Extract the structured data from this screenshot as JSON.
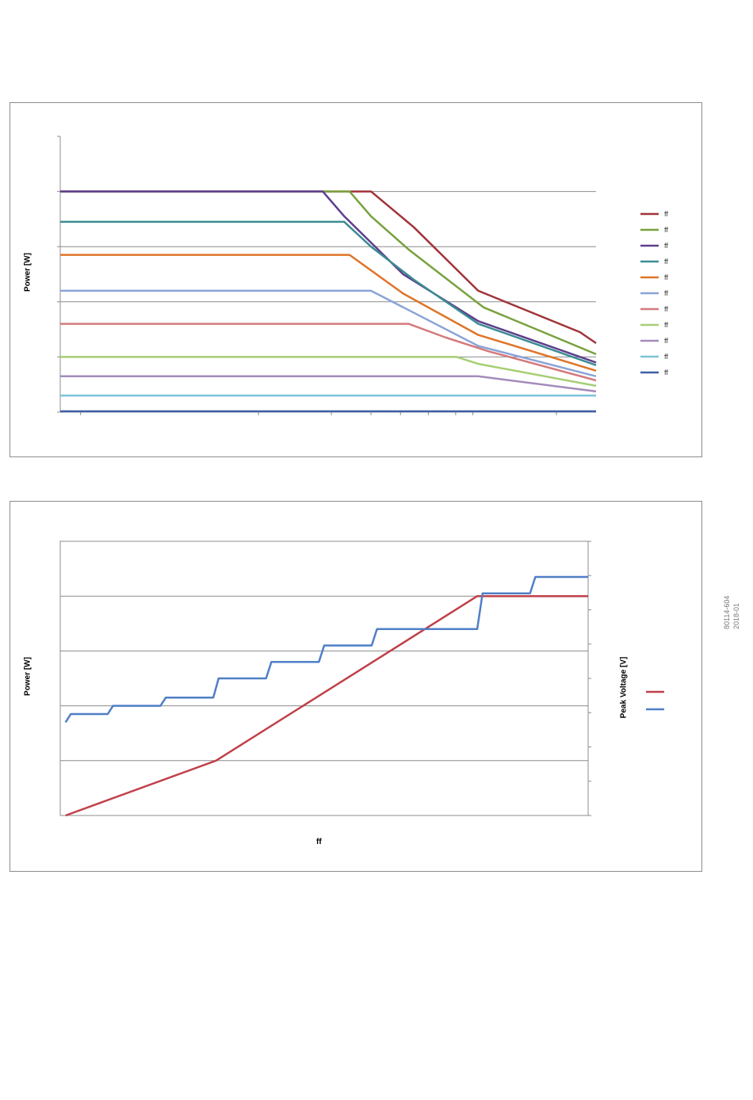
{
  "doc": {
    "code": "80114-604",
    "date": "2018-01"
  },
  "chart_data": [
    {
      "type": "line",
      "title": "",
      "ylabel": "Power [W]",
      "xlabel": "",
      "ylim": [
        0,
        1
      ],
      "xlim": [
        0,
        100
      ],
      "grid": "horizontal",
      "legend_position": "right",
      "series": [
        {
          "name": "ff",
          "color": "#a0343a",
          "points": [
            [
              0,
              0.8
            ],
            [
              58,
              0.8
            ],
            [
              66,
              0.67
            ],
            [
              78,
              0.44
            ],
            [
              97,
              0.29
            ],
            [
              100,
              0.25
            ]
          ]
        },
        {
          "name": "ff",
          "color": "#77a23e",
          "points": [
            [
              0,
              0.8
            ],
            [
              54,
              0.8
            ],
            [
              58,
              0.71
            ],
            [
              65,
              0.59
            ],
            [
              79,
              0.38
            ],
            [
              100,
              0.21
            ]
          ]
        },
        {
          "name": "ff",
          "color": "#5e3e8c",
          "points": [
            [
              0,
              0.8
            ],
            [
              49,
              0.8
            ],
            [
              53,
              0.71
            ],
            [
              64,
              0.5
            ],
            [
              78,
              0.33
            ],
            [
              100,
              0.18
            ]
          ]
        },
        {
          "name": "ff",
          "color": "#3b8c94",
          "points": [
            [
              0,
              0.69
            ],
            [
              53,
              0.69
            ],
            [
              58,
              0.6
            ],
            [
              66,
              0.48
            ],
            [
              78,
              0.32
            ],
            [
              100,
              0.17
            ]
          ]
        },
        {
          "name": "ff",
          "color": "#e07428",
          "points": [
            [
              0,
              0.57
            ],
            [
              54,
              0.57
            ],
            [
              64,
              0.43
            ],
            [
              78,
              0.28
            ],
            [
              100,
              0.15
            ]
          ]
        },
        {
          "name": "ff",
          "color": "#8aa4d6",
          "points": [
            [
              0,
              0.44
            ],
            [
              58,
              0.44
            ],
            [
              66,
              0.36
            ],
            [
              78,
              0.24
            ],
            [
              100,
              0.13
            ]
          ]
        },
        {
          "name": "ff",
          "color": "#d47a7c",
          "points": [
            [
              0,
              0.32
            ],
            [
              65,
              0.32
            ],
            [
              72,
              0.27
            ],
            [
              80,
              0.22
            ],
            [
              100,
              0.115
            ]
          ]
        },
        {
          "name": "ff",
          "color": "#a6ce74",
          "points": [
            [
              0,
              0.2
            ],
            [
              74,
              0.2
            ],
            [
              78,
              0.175
            ],
            [
              100,
              0.095
            ]
          ]
        },
        {
          "name": "ff",
          "color": "#a48bba",
          "points": [
            [
              0,
              0.13
            ],
            [
              78,
              0.13
            ],
            [
              100,
              0.075
            ]
          ]
        },
        {
          "name": "ff",
          "color": "#7cc4d8",
          "points": [
            [
              0,
              0.06
            ],
            [
              100,
              0.06
            ]
          ]
        },
        {
          "name": "ff",
          "color": "#3d5fa4",
          "points": [
            [
              0,
              0.003
            ],
            [
              100,
              0.003
            ]
          ]
        }
      ]
    },
    {
      "type": "line",
      "title": "",
      "ylabel": "Power [W]",
      "y2label": "Peak Voltage [V]",
      "xlabel": "ff",
      "ylim": [
        0,
        1
      ],
      "y2lim": [
        0,
        1
      ],
      "xlim": [
        0,
        100
      ],
      "grid": "horizontal",
      "legend_position": "right",
      "series": [
        {
          "name": "",
          "color": "#c0404a",
          "axis": "left",
          "points": [
            [
              1,
              0
            ],
            [
              29.5,
              0.2
            ],
            [
              79,
              0.8
            ],
            [
              100,
              0.8
            ]
          ]
        },
        {
          "name": "",
          "color": "#4f7fc6",
          "axis": "right",
          "points": [
            [
              1,
              0.34
            ],
            [
              2,
              0.37
            ],
            [
              9,
              0.37
            ],
            [
              10,
              0.4
            ],
            [
              19,
              0.4
            ],
            [
              20,
              0.43
            ],
            [
              29,
              0.43
            ],
            [
              30,
              0.5
            ],
            [
              39,
              0.5
            ],
            [
              40,
              0.56
            ],
            [
              49,
              0.56
            ],
            [
              50,
              0.62
            ],
            [
              59,
              0.62
            ],
            [
              60,
              0.68
            ],
            [
              79,
              0.68
            ],
            [
              80,
              0.81
            ],
            [
              89,
              0.81
            ],
            [
              90,
              0.87
            ],
            [
              100,
              0.87
            ]
          ]
        }
      ]
    }
  ]
}
